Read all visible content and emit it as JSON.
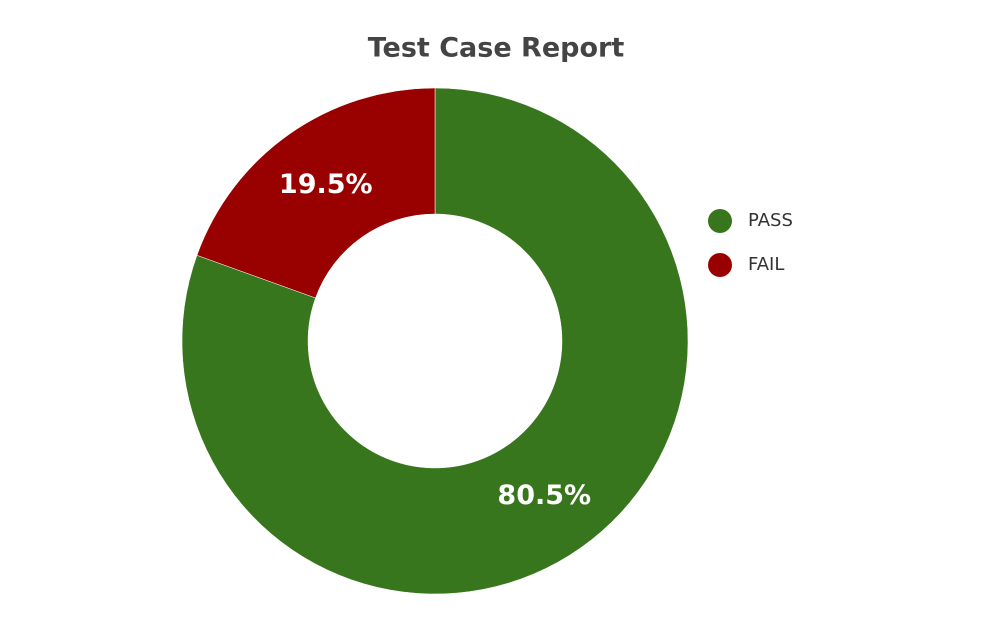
{
  "chart_data": {
    "type": "pie",
    "title": "Test Case Report",
    "categories": [
      "PASS",
      "FAIL"
    ],
    "values": [
      80.5,
      19.5
    ],
    "value_labels": [
      "80.5%",
      "19.5%"
    ],
    "colors": [
      "#38761d",
      "#990000"
    ],
    "donut": true,
    "legend": "right"
  }
}
